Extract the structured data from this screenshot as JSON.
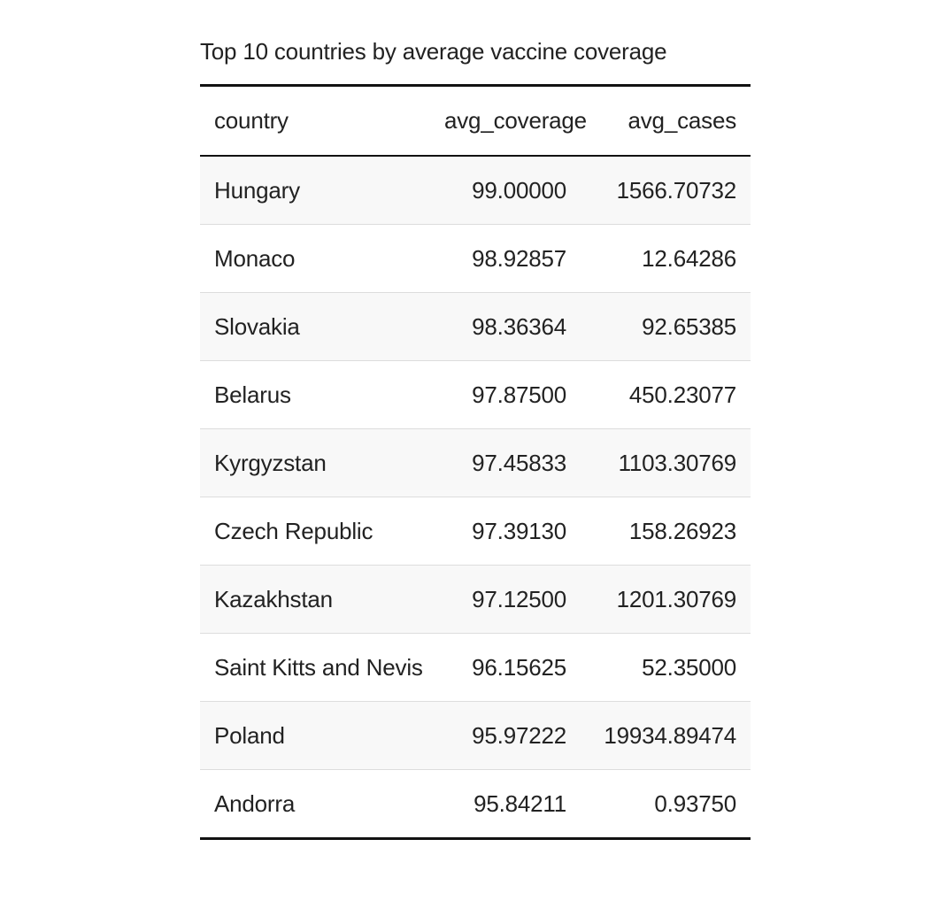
{
  "table": {
    "caption": "Top 10 countries by average vaccine coverage",
    "columns": [
      "country",
      "avg_coverage",
      "avg_cases"
    ],
    "rows": [
      {
        "country": "Hungary",
        "avg_coverage": "99.00000",
        "avg_cases": "1566.70732"
      },
      {
        "country": "Monaco",
        "avg_coverage": "98.92857",
        "avg_cases": "12.64286"
      },
      {
        "country": "Slovakia",
        "avg_coverage": "98.36364",
        "avg_cases": "92.65385"
      },
      {
        "country": "Belarus",
        "avg_coverage": "97.87500",
        "avg_cases": "450.23077"
      },
      {
        "country": "Kyrgyzstan",
        "avg_coverage": "97.45833",
        "avg_cases": "1103.30769"
      },
      {
        "country": "Czech Republic",
        "avg_coverage": "97.39130",
        "avg_cases": "158.26923"
      },
      {
        "country": "Kazakhstan",
        "avg_coverage": "97.12500",
        "avg_cases": "1201.30769"
      },
      {
        "country": "Saint Kitts and Nevis",
        "avg_coverage": "96.15625",
        "avg_cases": "52.35000"
      },
      {
        "country": "Poland",
        "avg_coverage": "95.97222",
        "avg_cases": "19934.89474"
      },
      {
        "country": "Andorra",
        "avg_coverage": "95.84211",
        "avg_cases": "0.93750"
      }
    ]
  },
  "colors": {
    "rule": "#111111",
    "row_divider": "#dddddd",
    "stripe": "#f8f8f8",
    "text": "#222222"
  }
}
